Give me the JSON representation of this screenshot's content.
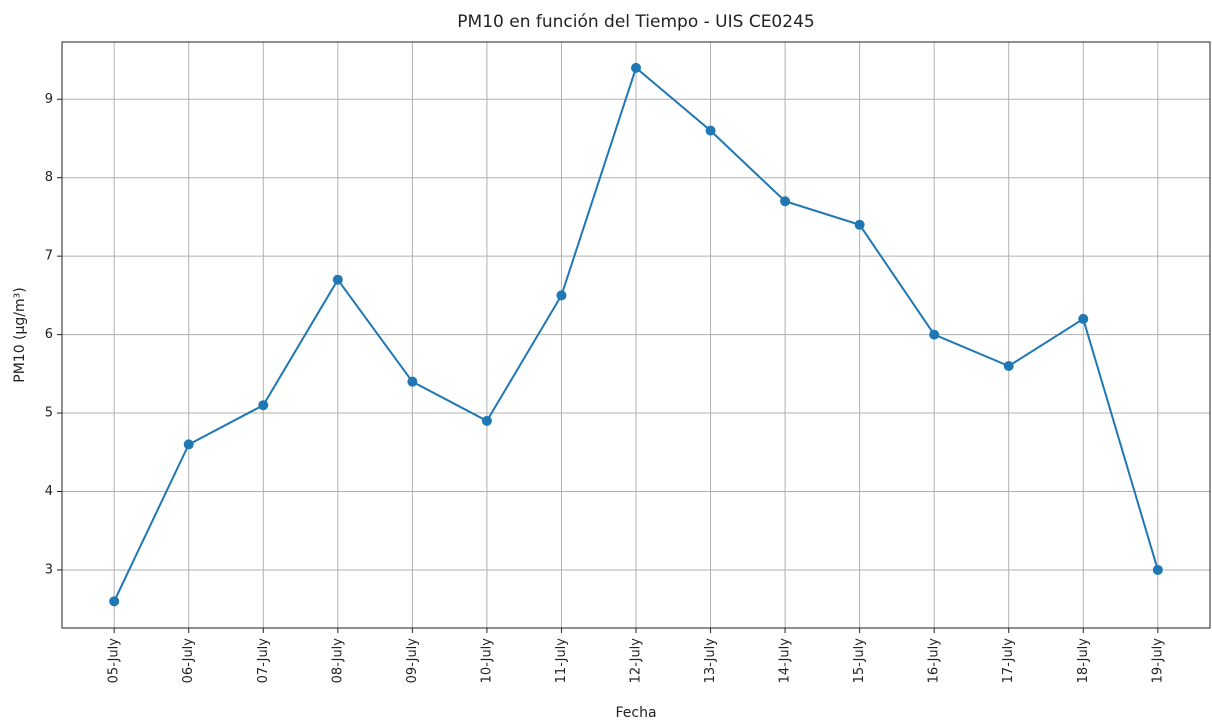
{
  "chart_data": {
    "type": "line",
    "title": "PM10 en función del Tiempo - UIS CE0245",
    "x_label": "Fecha",
    "y_label": "PM10 (µg/m³)",
    "categories": [
      "05-July",
      "06-July",
      "07-July",
      "08-July",
      "09-July",
      "10-July",
      "11-July",
      "12-July",
      "13-July",
      "14-July",
      "15-July",
      "16-July",
      "17-July",
      "18-July",
      "19-July"
    ],
    "series": [
      {
        "name": "PM10",
        "color": "#1f77b4",
        "values": [
          2.6,
          4.6,
          5.1,
          6.7,
          5.4,
          4.9,
          6.5,
          9.4,
          8.6,
          7.7,
          7.4,
          6.0,
          5.6,
          6.2,
          3.0
        ]
      }
    ],
    "ylim": [
      2.26,
      9.73
    ],
    "yticks": [
      3,
      4,
      5,
      6,
      7,
      8,
      9
    ],
    "grid": true
  }
}
